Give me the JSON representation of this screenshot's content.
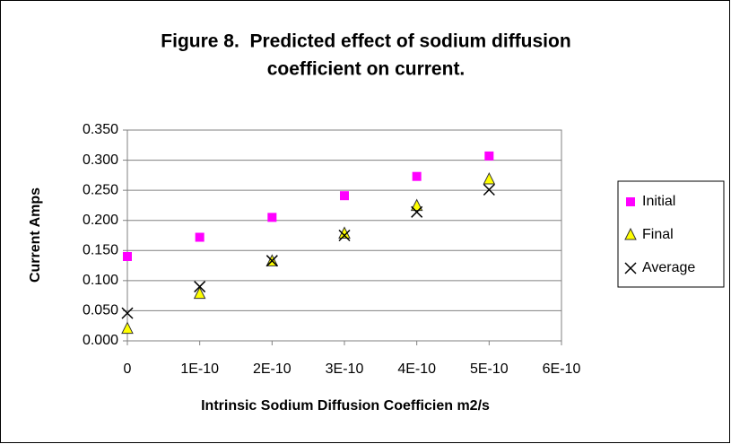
{
  "chart_data": {
    "type": "scatter",
    "title": [
      "Figure 8.  Predicted effect of sodium diffusion",
      "coefficient on current."
    ],
    "xlabel": "Intrinsic Sodium Diffusion Coefficien m2/s",
    "ylabel": "Current Amps",
    "x": [
      0,
      1e-10,
      2e-10,
      3e-10,
      4e-10,
      5e-10
    ],
    "series": [
      {
        "name": "Initial",
        "color": "#ff00ff",
        "marker": "square",
        "values": [
          0.14,
          0.172,
          0.205,
          0.241,
          0.273,
          0.307
        ]
      },
      {
        "name": "Final",
        "color": "#ffff00",
        "marker": "triangle",
        "values": [
          0.02,
          0.078,
          0.132,
          0.178,
          0.224,
          0.268
        ]
      },
      {
        "name": "Average",
        "color": "#000000",
        "marker": "x",
        "values": [
          0.046,
          0.09,
          0.133,
          0.175,
          0.214,
          0.251
        ]
      }
    ],
    "xlim": [
      0,
      6e-10
    ],
    "xticks": [
      0,
      {
        "value": 1e-10,
        "label": "1E-10"
      },
      {
        "value": 2e-10,
        "label": "2E-10"
      },
      {
        "value": 3e-10,
        "label": "3E-10"
      },
      {
        "value": 4e-10,
        "label": "4E-10"
      },
      {
        "value": 5e-10,
        "label": "5E-10"
      },
      {
        "value": 6e-10,
        "label": "6E-10"
      }
    ],
    "ylim": [
      0,
      0.35
    ],
    "yticks": [
      {
        "value": 0,
        "label": "0.000"
      },
      {
        "value": 0.05,
        "label": "0.050"
      },
      {
        "value": 0.1,
        "label": "0.100"
      },
      {
        "value": 0.15,
        "label": "0.150"
      },
      {
        "value": 0.2,
        "label": "0.200"
      },
      {
        "value": 0.25,
        "label": "0.250"
      },
      {
        "value": 0.3,
        "label": "0.300"
      },
      {
        "value": 0.35,
        "label": "0.350"
      }
    ],
    "grid": true,
    "legend": "right"
  }
}
